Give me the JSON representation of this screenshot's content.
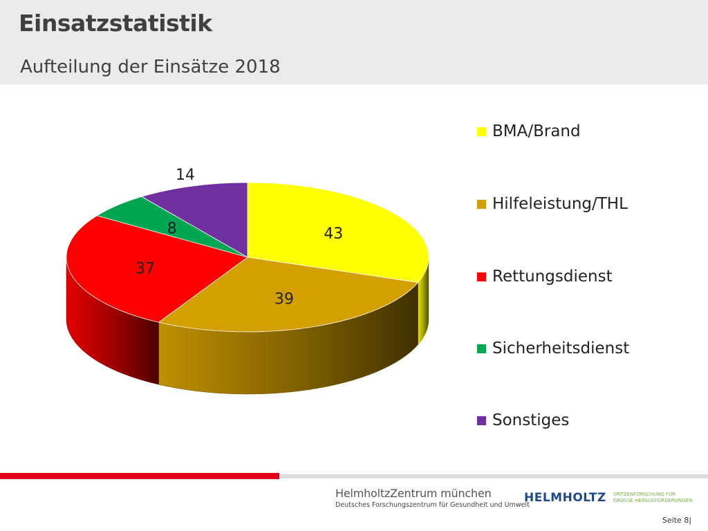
{
  "header": {
    "title": "Einsatzstatistik",
    "subtitle": "Aufteilung der Einsätze 2018"
  },
  "chart_data": {
    "type": "pie",
    "style": "3d",
    "categories": [
      "BMA/Brand",
      "Hilfeleistung/THL",
      "Rettungsdienst",
      "Sicherheitsdienst",
      "Sonstiges"
    ],
    "values": [
      43,
      39,
      37,
      8,
      14
    ],
    "data_labels": [
      "43",
      "39",
      "37",
      "8",
      "14"
    ],
    "colors": [
      "#ffff00",
      "#d4a000",
      "#ff0000",
      "#00a651",
      "#7030a0"
    ],
    "legend_position": "right",
    "title": ""
  },
  "legend": {
    "items": [
      {
        "label": "BMA/Brand",
        "color": "#ffff00"
      },
      {
        "label": "Hilfeleistung/THL",
        "color": "#d4a000"
      },
      {
        "label": "Rettungsdienst",
        "color": "#ff0000"
      },
      {
        "label": "Sicherheitsdienst",
        "color": "#00a651"
      },
      {
        "label": "Sonstiges",
        "color": "#7030a0"
      }
    ]
  },
  "footer": {
    "logo_hmgu_name": "HelmholtzZentrum münchen",
    "logo_hmgu_sub": "Deutsches Forschungszentrum für Gesundheit und Umwelt",
    "logo_helmholtz_word": "HELMHOLTZ",
    "logo_helmholtz_tagline": "SPITZENFORSCHUNG FÜR\nGROSSE HERAUSFORDERUNGEN",
    "page_label": "Seite 8|",
    "accent_color": "#e2001a"
  }
}
